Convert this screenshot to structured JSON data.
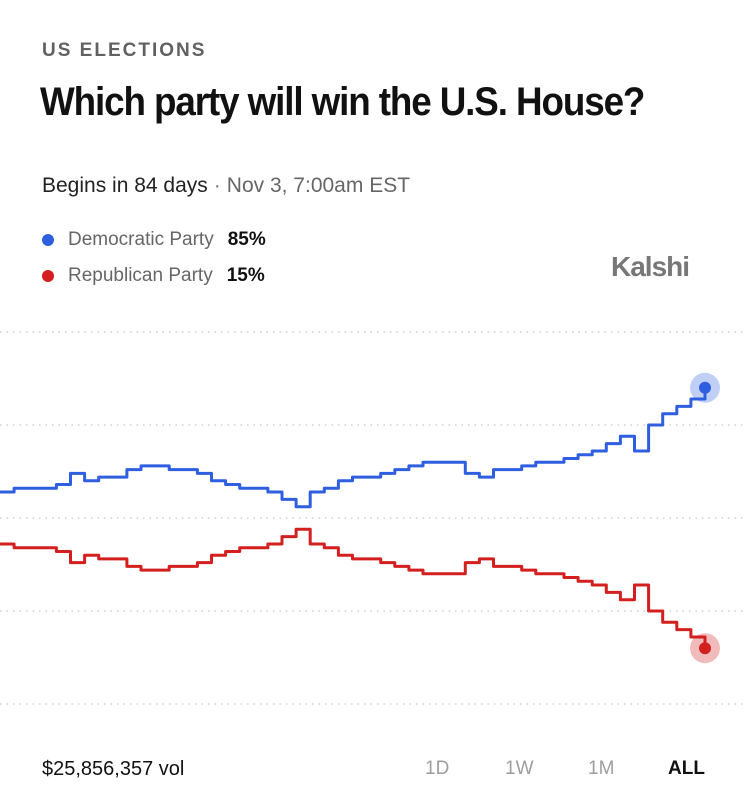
{
  "header": {
    "category": "US ELECTIONS",
    "title": "Which party will win the U.S. House?",
    "begins": "Begins in 84 days",
    "separator": "·",
    "date": "Nov 3, 7:00am EST"
  },
  "legend": [
    {
      "name": "Democratic Party",
      "pct": "85%",
      "color": "#2f5fe0"
    },
    {
      "name": "Republican Party",
      "pct": "15%",
      "color": "#d41f1f"
    }
  ],
  "brand": "Kalshi",
  "footer": {
    "volume": "$25,856,357 vol",
    "ranges": [
      "1D",
      "1W",
      "1M",
      "ALL"
    ],
    "active_range": "ALL"
  },
  "chart_data": {
    "type": "line",
    "ylim": [
      0,
      100
    ],
    "grid": true,
    "x": [
      0,
      2,
      4,
      6,
      8,
      10,
      12,
      14,
      16,
      18,
      20,
      22,
      24,
      26,
      28,
      30,
      32,
      34,
      36,
      38,
      40,
      42,
      44,
      46,
      48,
      50,
      52,
      54,
      56,
      58,
      60,
      62,
      64,
      66,
      68,
      70,
      72,
      74,
      76,
      78,
      80,
      82,
      84,
      86,
      88,
      90,
      92,
      94,
      96,
      98,
      100
    ],
    "series": [
      {
        "name": "Democratic Party",
        "color": "#2f5fe0",
        "values": [
          57,
          58,
          58,
          58,
          59,
          62,
          60,
          61,
          61,
          63,
          64,
          64,
          63,
          63,
          62,
          60,
          59,
          58,
          58,
          57,
          55,
          53,
          57,
          58,
          60,
          61,
          61,
          62,
          63,
          64,
          65,
          65,
          65,
          62,
          61,
          63,
          63,
          64,
          65,
          65,
          66,
          67,
          68,
          70,
          72,
          68,
          75,
          78,
          80,
          82,
          85
        ]
      },
      {
        "name": "Republican Party",
        "color": "#d41f1f",
        "values": [
          43,
          42,
          42,
          42,
          41,
          38,
          40,
          39,
          39,
          37,
          36,
          36,
          37,
          37,
          38,
          40,
          41,
          42,
          42,
          43,
          45,
          47,
          43,
          42,
          40,
          39,
          39,
          38,
          37,
          36,
          35,
          35,
          35,
          38,
          39,
          37,
          37,
          36,
          35,
          35,
          34,
          33,
          32,
          30,
          28,
          32,
          25,
          22,
          20,
          18,
          15
        ]
      }
    ]
  }
}
